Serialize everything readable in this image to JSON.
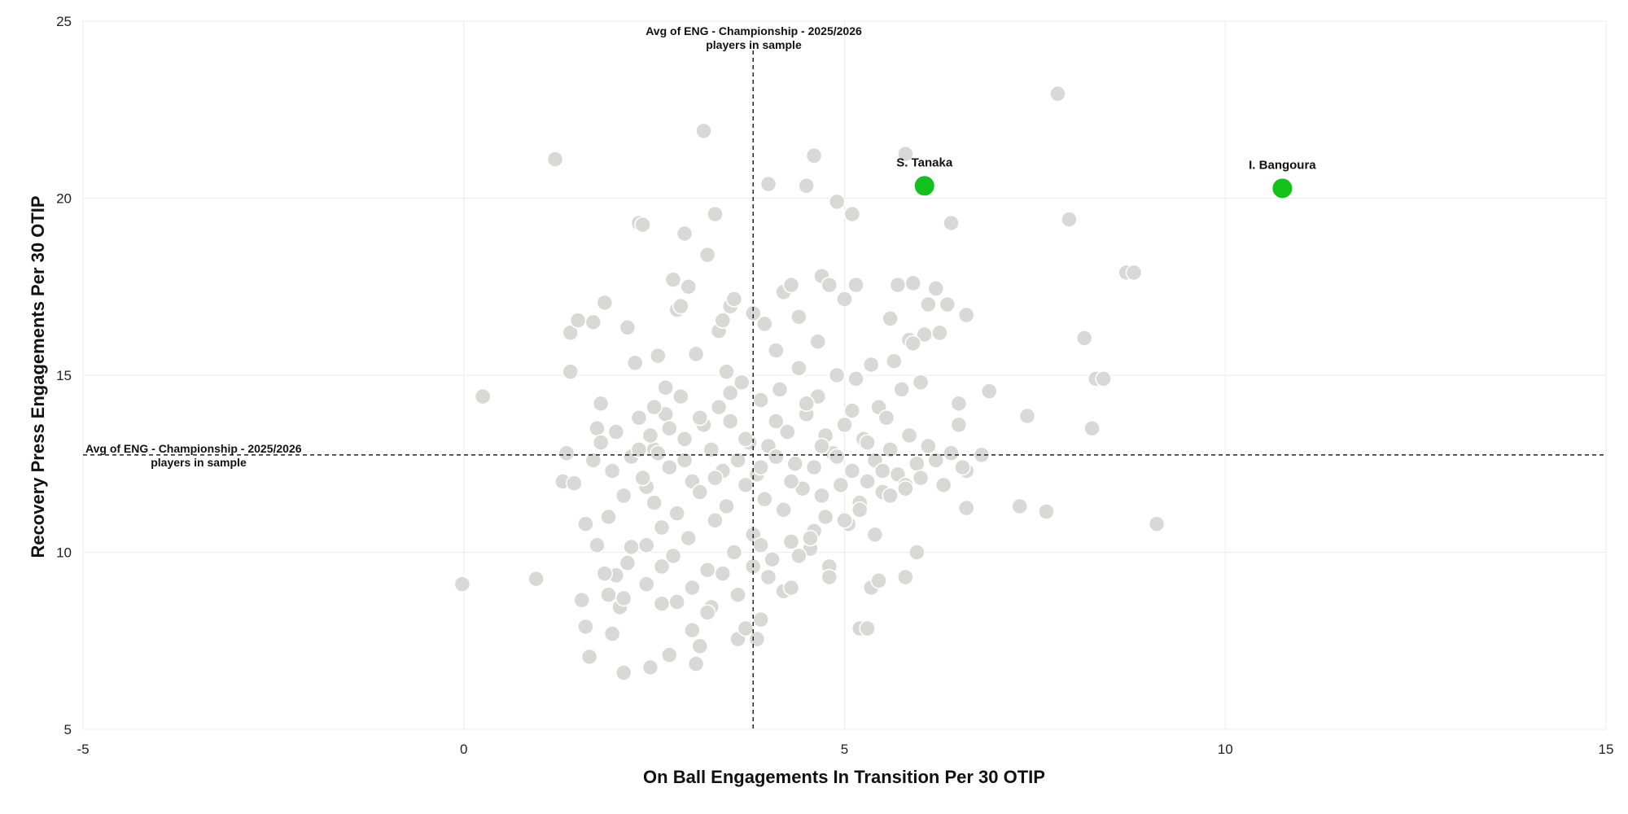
{
  "chart_data": {
    "type": "scatter",
    "xlabel": "On Ball Engagements In Transition Per 30 OTIP",
    "ylabel": "Recovery Press Engagements Per 30 OTIP",
    "xlim": [
      -5,
      15
    ],
    "ylim": [
      5,
      25
    ],
    "x_ticks": [
      "-5",
      "0",
      "5",
      "10",
      "15"
    ],
    "y_ticks": [
      "5",
      "10",
      "15",
      "20",
      "25"
    ],
    "grid": true,
    "colors": {
      "sample": "#d8d8d6",
      "highlight": "#13c11b",
      "grid": "#ebebeb",
      "reference": "#222222"
    },
    "avg_x": {
      "value": 3.8,
      "label_line1": "Avg of ENG - Championship - 2025/2026",
      "label_line2": "players in sample"
    },
    "avg_y": {
      "value": 12.75,
      "label_line1": "Avg of ENG - Championship - 2025/2026",
      "label_line2": "players in sample"
    },
    "highlighted": [
      {
        "name": "S. Tanaka",
        "x": 6.05,
        "y": 20.35
      },
      {
        "name": "I. Bangoura",
        "x": 10.75,
        "y": 20.28
      }
    ],
    "points": [
      [
        -0.02,
        9.1
      ],
      [
        0.25,
        14.4
      ],
      [
        0.95,
        9.25
      ],
      [
        1.2,
        21.1
      ],
      [
        1.3,
        12.0
      ],
      [
        1.35,
        12.8
      ],
      [
        1.4,
        15.1
      ],
      [
        1.4,
        16.2
      ],
      [
        1.45,
        11.95
      ],
      [
        1.5,
        16.55
      ],
      [
        1.55,
        8.65
      ],
      [
        1.6,
        7.9
      ],
      [
        1.65,
        7.05
      ],
      [
        1.7,
        16.5
      ],
      [
        1.75,
        13.5
      ],
      [
        1.8,
        14.2
      ],
      [
        1.85,
        17.05
      ],
      [
        1.9,
        8.8
      ],
      [
        1.95,
        7.7
      ],
      [
        2.0,
        9.35
      ],
      [
        2.05,
        8.45
      ],
      [
        2.1,
        6.6
      ],
      [
        2.15,
        16.35
      ],
      [
        2.2,
        10.15
      ],
      [
        2.25,
        15.35
      ],
      [
        2.3,
        19.3
      ],
      [
        2.35,
        19.25
      ],
      [
        2.4,
        11.85
      ],
      [
        2.45,
        6.75
      ],
      [
        2.5,
        12.9
      ],
      [
        2.55,
        15.55
      ],
      [
        2.6,
        8.55
      ],
      [
        2.65,
        14.65
      ],
      [
        2.7,
        7.1
      ],
      [
        2.75,
        17.7
      ],
      [
        2.8,
        16.85
      ],
      [
        2.85,
        16.95
      ],
      [
        2.9,
        19.0
      ],
      [
        2.95,
        17.5
      ],
      [
        3.0,
        7.8
      ],
      [
        3.05,
        6.85
      ],
      [
        3.1,
        7.35
      ],
      [
        3.15,
        21.9
      ],
      [
        3.2,
        18.4
      ],
      [
        3.25,
        8.45
      ],
      [
        3.3,
        19.55
      ],
      [
        3.35,
        16.25
      ],
      [
        3.4,
        16.55
      ],
      [
        3.45,
        15.1
      ],
      [
        3.5,
        16.95
      ],
      [
        3.55,
        17.15
      ],
      [
        3.6,
        7.55
      ],
      [
        3.7,
        7.85
      ],
      [
        3.8,
        16.75
      ],
      [
        3.85,
        7.55
      ],
      [
        3.9,
        8.1
      ],
      [
        3.95,
        16.45
      ],
      [
        4.0,
        20.4
      ],
      [
        4.1,
        15.7
      ],
      [
        4.2,
        17.35
      ],
      [
        4.3,
        17.55
      ],
      [
        4.4,
        16.65
      ],
      [
        4.5,
        20.35
      ],
      [
        4.6,
        21.2
      ],
      [
        4.65,
        15.95
      ],
      [
        4.7,
        17.8
      ],
      [
        4.8,
        17.55
      ],
      [
        4.9,
        19.9
      ],
      [
        5.0,
        17.15
      ],
      [
        5.1,
        19.55
      ],
      [
        5.15,
        17.55
      ],
      [
        5.2,
        7.85
      ],
      [
        5.3,
        7.85
      ],
      [
        5.35,
        9.0
      ],
      [
        5.45,
        9.2
      ],
      [
        5.6,
        16.6
      ],
      [
        5.7,
        17.55
      ],
      [
        5.8,
        21.25
      ],
      [
        5.8,
        9.3
      ],
      [
        5.85,
        16.0
      ],
      [
        5.9,
        17.6
      ],
      [
        5.95,
        10.0
      ],
      [
        6.05,
        16.15
      ],
      [
        6.1,
        17.0
      ],
      [
        6.2,
        17.45
      ],
      [
        6.25,
        16.2
      ],
      [
        6.35,
        17.0
      ],
      [
        6.4,
        19.3
      ],
      [
        6.6,
        16.7
      ],
      [
        6.5,
        14.2
      ],
      [
        6.6,
        12.3
      ],
      [
        6.6,
        11.25
      ],
      [
        6.8,
        12.75
      ],
      [
        6.9,
        14.55
      ],
      [
        7.3,
        11.3
      ],
      [
        7.4,
        13.85
      ],
      [
        7.65,
        11.15
      ],
      [
        7.8,
        22.95
      ],
      [
        7.95,
        19.4
      ],
      [
        8.15,
        16.05
      ],
      [
        8.25,
        13.5
      ],
      [
        8.3,
        14.9
      ],
      [
        8.4,
        14.9
      ],
      [
        8.7,
        17.9
      ],
      [
        8.8,
        17.9
      ],
      [
        9.1,
        10.8
      ],
      [
        1.7,
        12.6
      ],
      [
        1.8,
        13.1
      ],
      [
        1.9,
        11.0
      ],
      [
        1.95,
        12.3
      ],
      [
        2.0,
        13.4
      ],
      [
        2.1,
        11.6
      ],
      [
        2.15,
        9.7
      ],
      [
        2.2,
        12.7
      ],
      [
        2.3,
        13.8
      ],
      [
        2.35,
        12.1
      ],
      [
        2.4,
        10.2
      ],
      [
        2.45,
        13.3
      ],
      [
        2.5,
        11.4
      ],
      [
        2.55,
        12.8
      ],
      [
        2.6,
        10.7
      ],
      [
        2.65,
        13.9
      ],
      [
        2.7,
        12.4
      ],
      [
        2.75,
        9.9
      ],
      [
        2.8,
        11.1
      ],
      [
        2.85,
        14.4
      ],
      [
        2.9,
        13.2
      ],
      [
        2.95,
        10.4
      ],
      [
        3.0,
        12.0
      ],
      [
        3.05,
        15.6
      ],
      [
        3.1,
        11.7
      ],
      [
        3.15,
        13.6
      ],
      [
        3.2,
        9.5
      ],
      [
        3.25,
        12.9
      ],
      [
        3.3,
        10.9
      ],
      [
        3.35,
        14.1
      ],
      [
        3.4,
        12.3
      ],
      [
        3.45,
        11.3
      ],
      [
        3.5,
        13.7
      ],
      [
        3.55,
        10.0
      ],
      [
        3.6,
        12.6
      ],
      [
        3.65,
        14.8
      ],
      [
        3.7,
        11.9
      ],
      [
        3.75,
        13.1
      ],
      [
        3.8,
        10.5
      ],
      [
        3.85,
        12.2
      ],
      [
        3.9,
        14.3
      ],
      [
        3.95,
        11.5
      ],
      [
        4.0,
        13.0
      ],
      [
        4.05,
        9.8
      ],
      [
        4.1,
        12.7
      ],
      [
        4.15,
        14.6
      ],
      [
        4.2,
        11.2
      ],
      [
        4.25,
        13.4
      ],
      [
        4.3,
        10.3
      ],
      [
        4.35,
        12.5
      ],
      [
        4.4,
        15.2
      ],
      [
        4.45,
        11.8
      ],
      [
        4.5,
        13.9
      ],
      [
        4.55,
        10.1
      ],
      [
        4.6,
        12.4
      ],
      [
        4.65,
        14.4
      ],
      [
        4.7,
        11.6
      ],
      [
        4.75,
        13.3
      ],
      [
        4.8,
        9.6
      ],
      [
        4.85,
        12.8
      ],
      [
        4.9,
        15.0
      ],
      [
        4.95,
        11.9
      ],
      [
        5.0,
        13.6
      ],
      [
        5.05,
        10.8
      ],
      [
        5.1,
        12.3
      ],
      [
        5.15,
        14.9
      ],
      [
        5.2,
        11.4
      ],
      [
        5.25,
        13.2
      ],
      [
        5.3,
        12.0
      ],
      [
        5.35,
        15.3
      ],
      [
        5.4,
        12.6
      ],
      [
        5.45,
        14.1
      ],
      [
        5.5,
        11.7
      ],
      [
        5.55,
        13.8
      ],
      [
        5.6,
        12.9
      ],
      [
        5.65,
        15.4
      ],
      [
        5.7,
        12.2
      ],
      [
        5.75,
        14.6
      ],
      [
        5.8,
        11.9
      ],
      [
        5.85,
        13.3
      ],
      [
        5.9,
        15.9
      ],
      [
        5.95,
        12.5
      ],
      [
        6.0,
        14.8
      ],
      [
        6.1,
        13.0
      ],
      [
        6.2,
        12.6
      ],
      [
        6.3,
        11.9
      ],
      [
        6.4,
        12.8
      ],
      [
        6.5,
        13.6
      ],
      [
        6.55,
        12.4
      ],
      [
        2.3,
        12.9
      ],
      [
        2.5,
        14.1
      ],
      [
        2.7,
        13.5
      ],
      [
        2.9,
        12.6
      ],
      [
        3.1,
        13.8
      ],
      [
        3.3,
        12.1
      ],
      [
        3.5,
        14.5
      ],
      [
        3.7,
        13.2
      ],
      [
        3.9,
        12.4
      ],
      [
        4.1,
        13.7
      ],
      [
        4.3,
        12.0
      ],
      [
        4.5,
        14.2
      ],
      [
        4.7,
        13.0
      ],
      [
        4.9,
        12.7
      ],
      [
        5.1,
        14.0
      ],
      [
        5.3,
        13.1
      ],
      [
        5.5,
        12.3
      ],
      [
        2.4,
        9.1
      ],
      [
        2.8,
        8.6
      ],
      [
        3.0,
        9.0
      ],
      [
        3.2,
        8.3
      ],
      [
        3.4,
        9.4
      ],
      [
        3.6,
        8.8
      ],
      [
        3.8,
        9.6
      ],
      [
        4.0,
        9.3
      ],
      [
        4.2,
        8.9
      ],
      [
        4.4,
        9.9
      ],
      [
        4.6,
        10.6
      ],
      [
        4.8,
        9.3
      ],
      [
        5.0,
        10.9
      ],
      [
        5.2,
        11.2
      ],
      [
        5.4,
        10.5
      ],
      [
        5.6,
        11.6
      ],
      [
        5.8,
        11.8
      ],
      [
        6.0,
        12.1
      ],
      [
        1.6,
        10.8
      ],
      [
        1.75,
        10.2
      ],
      [
        1.85,
        9.4
      ],
      [
        2.1,
        8.7
      ],
      [
        2.6,
        9.6
      ],
      [
        3.9,
        10.2
      ],
      [
        4.3,
        9.0
      ],
      [
        4.55,
        10.4
      ],
      [
        4.75,
        11.0
      ]
    ]
  }
}
